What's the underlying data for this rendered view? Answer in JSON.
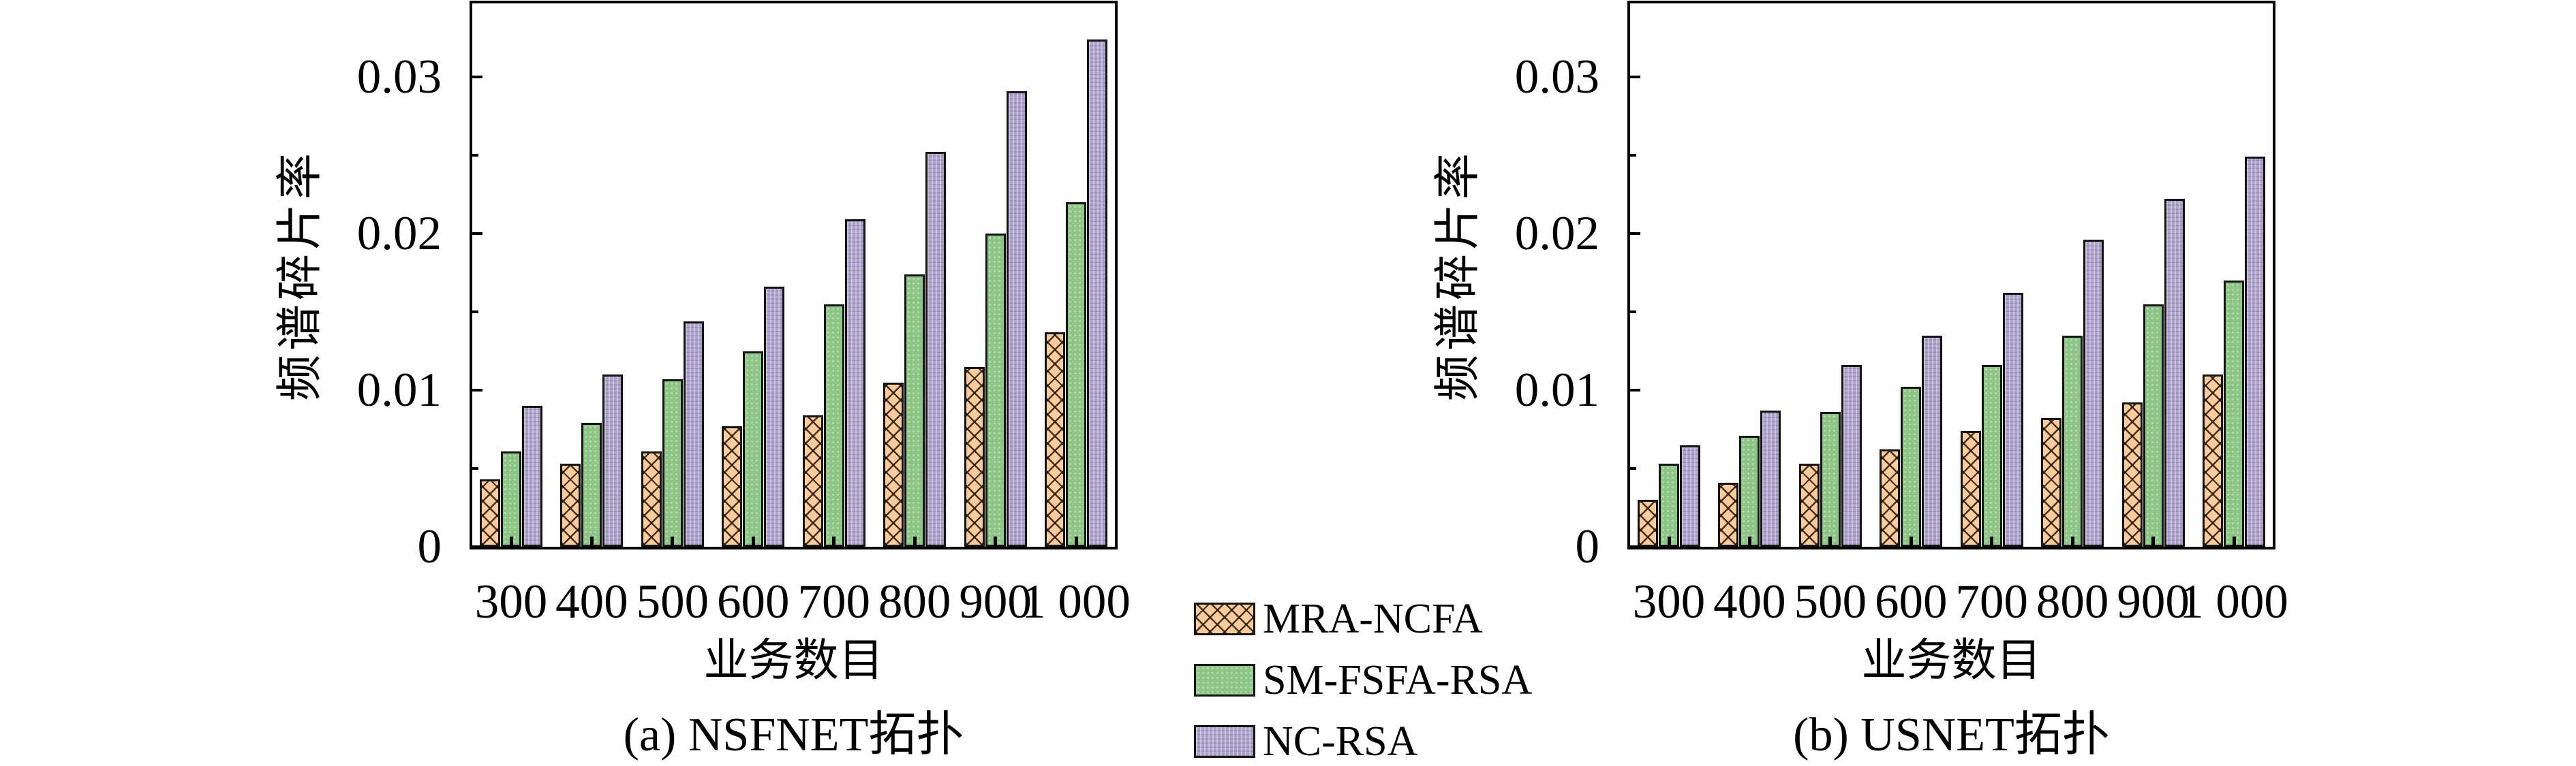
{
  "figure": {
    "background": "#ffffff",
    "axis_color": "#000000",
    "series_colors": {
      "MRA-NCFA": "#FACB9D",
      "SM-FSFA-RSA": "#8EC687",
      "NC-RSA": "#AEA4CA"
    }
  },
  "legend": {
    "position": "bottom-center-between-charts",
    "items": [
      {
        "label": "MRA-NCFA",
        "pattern": "crosshatch-orange",
        "color": "#FACB9D"
      },
      {
        "label": "SM-FSFA-RSA",
        "pattern": "dotted-green",
        "color": "#8EC687"
      },
      {
        "label": "NC-RSA",
        "pattern": "weave-purple",
        "color": "#AEA4CA"
      }
    ]
  },
  "chart_data": [
    {
      "id": "a",
      "type": "bar",
      "title": "(a) NSFNET拓扑",
      "xlabel": "业务数目",
      "ylabel": "频谱碎片率",
      "categories": [
        "300",
        "400",
        "500",
        "600",
        "700",
        "800",
        "900",
        "1 000"
      ],
      "series": [
        {
          "name": "MRA-NCFA",
          "values": [
            0.0043,
            0.0053,
            0.0061,
            0.0077,
            0.0084,
            0.0105,
            0.0115,
            0.0137
          ]
        },
        {
          "name": "SM-FSFA-RSA",
          "values": [
            0.0061,
            0.0079,
            0.0107,
            0.0125,
            0.0155,
            0.0174,
            0.02,
            0.022
          ]
        },
        {
          "name": "NC-RSA",
          "values": [
            0.009,
            0.011,
            0.0144,
            0.0166,
            0.0209,
            0.0252,
            0.0291,
            0.0324
          ]
        }
      ],
      "ylim": [
        0,
        0.0347
      ],
      "yticks": {
        "major": [
          0,
          0.01,
          0.02,
          0.03
        ],
        "minor": [
          0.005,
          0.015,
          0.025
        ],
        "labels": [
          "0",
          "0.01",
          "0.02",
          "0.03"
        ]
      },
      "grid": false
    },
    {
      "id": "b",
      "type": "bar",
      "title": "(b) USNET拓扑",
      "xlabel": "业务数目",
      "ylabel": "频谱碎片率",
      "categories": [
        "300",
        "400",
        "500",
        "600",
        "700",
        "800",
        "900",
        "1 000"
      ],
      "series": [
        {
          "name": "MRA-NCFA",
          "values": [
            0.003,
            0.0041,
            0.0053,
            0.0062,
            0.0074,
            0.0082,
            0.0092,
            0.011
          ]
        },
        {
          "name": "SM-FSFA-RSA",
          "values": [
            0.0053,
            0.0071,
            0.0086,
            0.0102,
            0.0116,
            0.0135,
            0.0155,
            0.017
          ]
        },
        {
          "name": "NC-RSA",
          "values": [
            0.0065,
            0.0087,
            0.0116,
            0.0135,
            0.0162,
            0.0196,
            0.0222,
            0.0249
          ]
        }
      ],
      "ylim": [
        0,
        0.0347
      ],
      "yticks": {
        "major": [
          0,
          0.01,
          0.02,
          0.03
        ],
        "minor": [
          0.005,
          0.015,
          0.025
        ],
        "labels": [
          "0",
          "0.01",
          "0.02",
          "0.03"
        ]
      },
      "grid": false
    }
  ]
}
